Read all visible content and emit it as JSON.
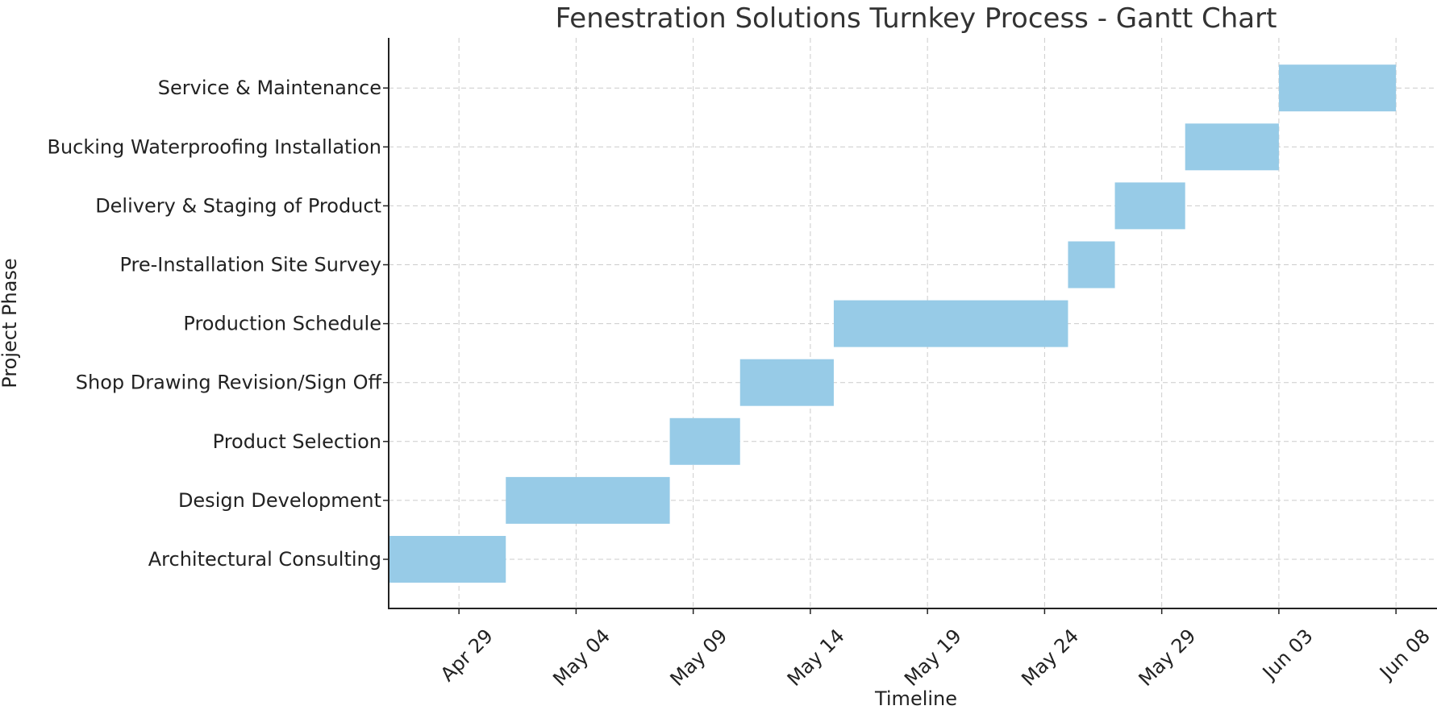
{
  "chart_data": {
    "type": "bar",
    "orientation": "horizontal",
    "title": "Fenestration Solutions Turnkey Process - Gantt Chart",
    "xlabel": "Timeline",
    "ylabel": "Project Phase",
    "xlim": [
      "2024-04-26",
      "2024-06-08"
    ],
    "xticks": [
      "Apr 29",
      "May 04",
      "May 09",
      "May 14",
      "May 19",
      "May 24",
      "May 29",
      "Jun 03",
      "Jun 08"
    ],
    "xtick_dates": [
      "2024-04-29",
      "2024-05-04",
      "2024-05-09",
      "2024-05-14",
      "2024-05-19",
      "2024-05-24",
      "2024-05-29",
      "2024-06-03",
      "2024-06-08"
    ],
    "grid": true,
    "bar_color": "#97cbe7",
    "tasks": [
      {
        "name": "Architectural Consulting",
        "start": "2024-04-26",
        "end": "2024-05-01"
      },
      {
        "name": "Design Development",
        "start": "2024-05-01",
        "end": "2024-05-08"
      },
      {
        "name": "Product Selection",
        "start": "2024-05-08",
        "end": "2024-05-11"
      },
      {
        "name": "Shop Drawing Revision/Sign Off",
        "start": "2024-05-11",
        "end": "2024-05-15"
      },
      {
        "name": "Production Schedule",
        "start": "2024-05-15",
        "end": "2024-05-25"
      },
      {
        "name": "Pre-Installation Site Survey",
        "start": "2024-05-25",
        "end": "2024-05-27"
      },
      {
        "name": "Delivery & Staging of Product",
        "start": "2024-05-27",
        "end": "2024-05-30"
      },
      {
        "name": "Bucking Waterproofing Installation",
        "start": "2024-05-30",
        "end": "2024-06-03"
      },
      {
        "name": "Service & Maintenance",
        "start": "2024-06-03",
        "end": "2024-06-08"
      }
    ]
  }
}
